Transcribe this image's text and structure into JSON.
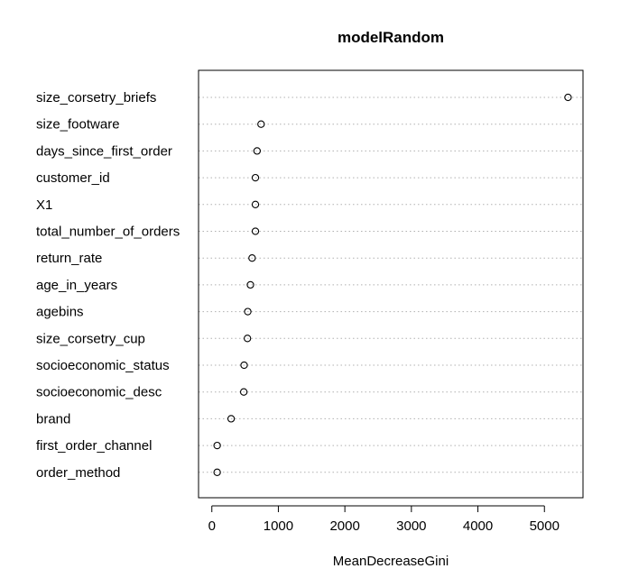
{
  "chart_data": {
    "type": "scatter",
    "title": "modelRandom",
    "xlabel": "MeanDecreaseGini",
    "ylabel": "",
    "xlim": [
      -200,
      5580
    ],
    "xticks": [
      0,
      1000,
      2000,
      3000,
      4000,
      5000
    ],
    "xtick_labels": [
      "0",
      "1000",
      "2000",
      "3000",
      "4000",
      "5000"
    ],
    "grid": "horizontal dotted",
    "categories": [
      "size_corsetry_briefs",
      "size_footware",
      "days_since_first_order",
      "customer_id",
      "X1",
      "total_number_of_orders",
      "return_rate",
      "age_in_years",
      "agebins",
      "size_corsetry_cup",
      "socioeconomic_status",
      "socioeconomic_desc",
      "brand",
      "first_order_channel",
      "order_method"
    ],
    "values": [
      5355,
      740,
      680,
      655,
      655,
      655,
      605,
      580,
      540,
      535,
      485,
      480,
      290,
      80,
      80
    ]
  }
}
